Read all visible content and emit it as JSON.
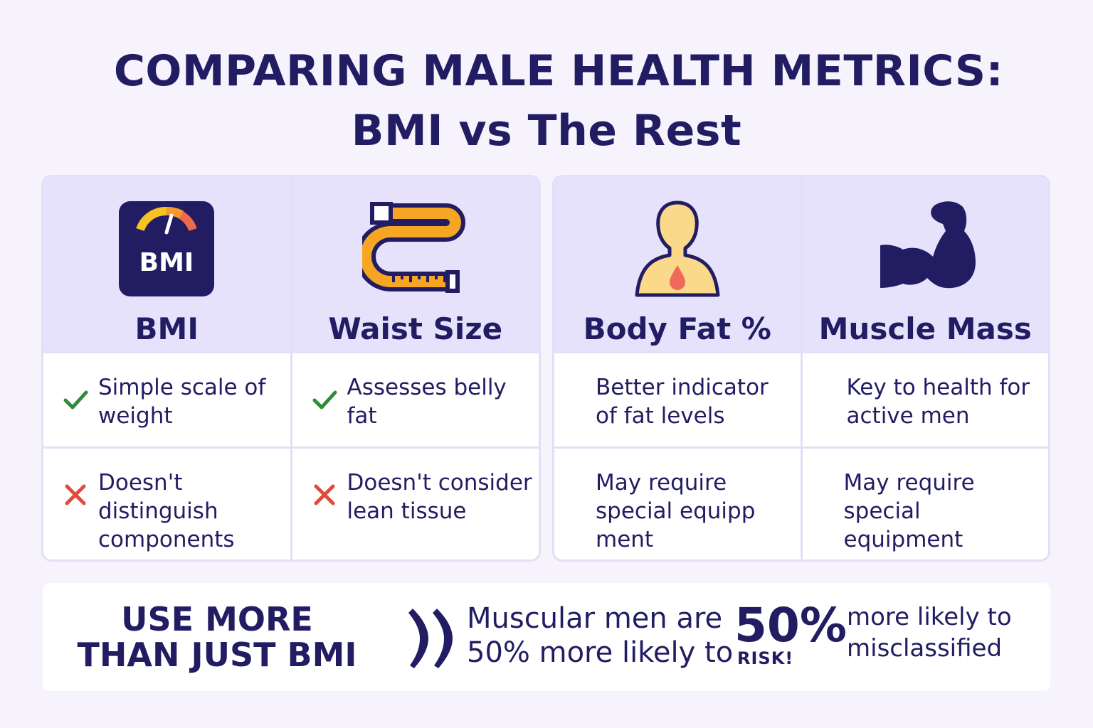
{
  "title": {
    "line1": "COMPARING MALE HEALTH METRICS:",
    "line2": "BMI vs The Rest"
  },
  "colors": {
    "navy": "#221d63",
    "header_bg": "#e7e2fb",
    "check": "#2e8b3a",
    "cross": "#e04a3a",
    "tape": "#f6a623",
    "skin": "#fbd98a",
    "drop": "#ef6a5a"
  },
  "metrics": [
    {
      "icon": "bmi-scale-icon",
      "icon_text": "BMI",
      "title": "BMI",
      "pro": "Simple scale of weight",
      "pro_icon": "check-icon",
      "con": "Doesn't distinguish components",
      "con_icon": "cross-icon"
    },
    {
      "icon": "measuring-tape-icon",
      "title": "Waist Size",
      "pro": "Assesses belly fat",
      "pro_icon": "check-icon",
      "con": "Doesn't consider lean tissue",
      "con_icon": "cross-icon"
    },
    {
      "icon": "body-fat-icon",
      "title": "Body Fat %",
      "pro": "Better indicator of fat levels",
      "con": "May require special equipp ment"
    },
    {
      "icon": "flexed-arm-icon",
      "title": "Muscle Mass",
      "pro": "Key to health for active men",
      "con": "May require special equipment"
    }
  ],
  "bottom": {
    "cta": "USE MORE THAN JUST BMI",
    "quote_icon": "quote-icon",
    "stat_text": "Muscular men are 50% more likely to",
    "big_pct": "50%",
    "risk": "RISK!",
    "side_text": "more likely to misclassified"
  }
}
